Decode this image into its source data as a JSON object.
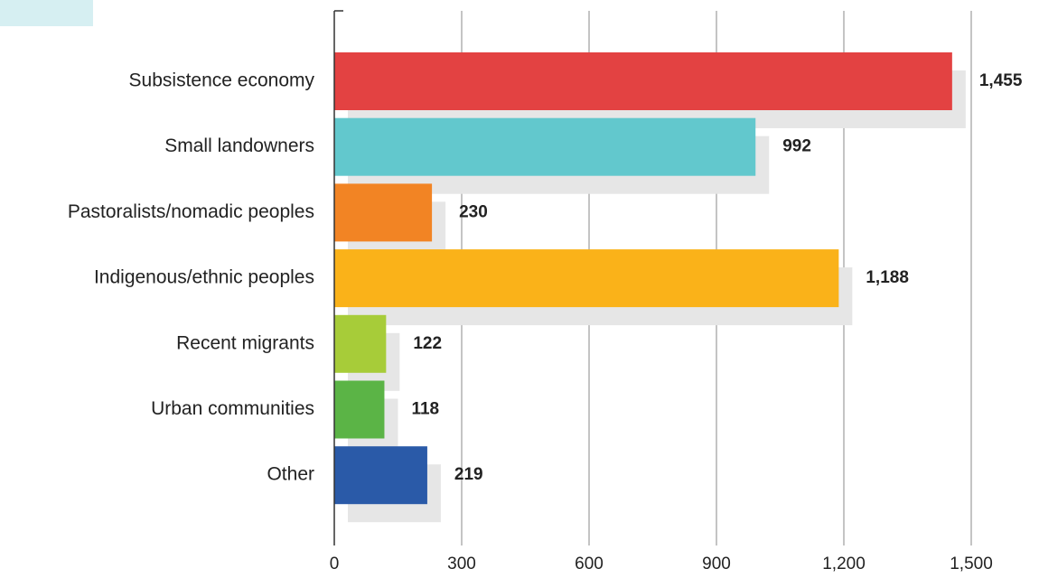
{
  "chart_data": {
    "type": "bar",
    "orientation": "horizontal",
    "categories": [
      "Subsistence economy",
      "Small landowners",
      "Pastoralists/nomadic peoples",
      "Indigenous/ethnic peoples",
      "Recent migrants",
      "Urban communities",
      "Other"
    ],
    "values": [
      1455,
      992,
      230,
      1188,
      122,
      118,
      219
    ],
    "value_labels": [
      "1,455",
      "992",
      "230",
      "1,188",
      "122",
      "118",
      "219"
    ],
    "bar_colors": [
      "#e34242",
      "#62c8cd",
      "#f28424",
      "#fab219",
      "#a7cc39",
      "#5bb446",
      "#2a5aa8"
    ],
    "shadow_color": "#e6e6e6",
    "xlim": [
      0,
      1500
    ],
    "xticks": [
      0,
      300,
      600,
      900,
      1200,
      1500
    ],
    "xtick_labels": [
      "0",
      "300",
      "600",
      "900",
      "1,200",
      "1,500"
    ],
    "grid": true,
    "title": "",
    "xlabel": "",
    "ylabel": ""
  }
}
